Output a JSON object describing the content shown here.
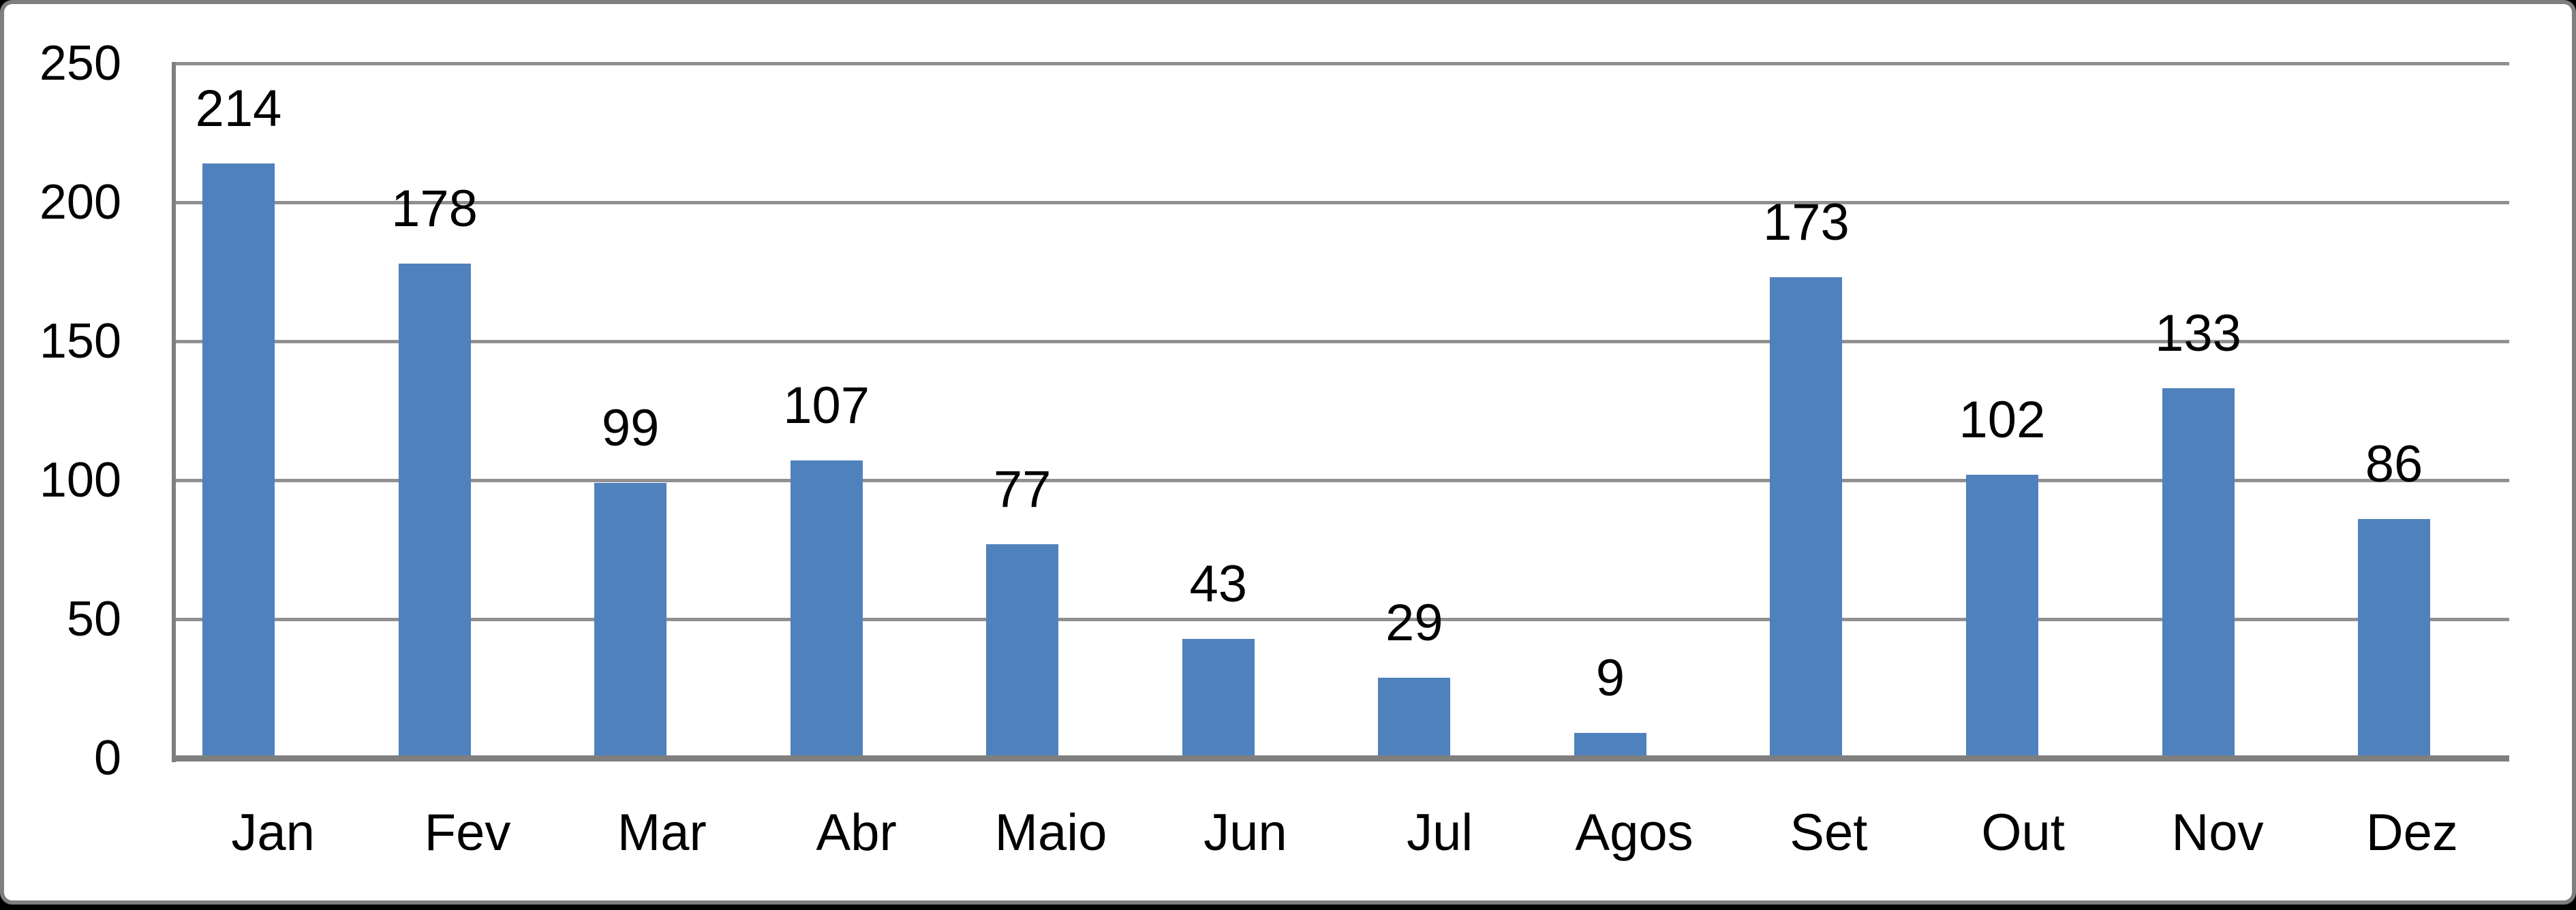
{
  "chart_data": {
    "type": "bar",
    "title": "",
    "xlabel": "",
    "ylabel": "",
    "categories": [
      "Jan",
      "Fev",
      "Mar",
      "Abr",
      "Maio",
      "Jun",
      "Jul",
      "Agos",
      "Set",
      "Out",
      "Nov",
      "Dez"
    ],
    "values": [
      214,
      178,
      99,
      107,
      77,
      43,
      29,
      9,
      173,
      102,
      133,
      86
    ],
    "data_labels": [
      214,
      178,
      99,
      107,
      77,
      43,
      29,
      9,
      173,
      102,
      133,
      86
    ],
    "y_ticks": [
      0,
      50,
      100,
      150,
      200,
      250
    ],
    "ylim": [
      0,
      250
    ],
    "grid": true,
    "legend": false,
    "data_labels_shown": true,
    "colors": {
      "bar": "#4F81BD",
      "gridline": "#909090",
      "axis": "#7F7F7F",
      "plot_border": "#7F7F7F",
      "frame_border": "#7F7F7F",
      "frame_outer": "#000000",
      "text": "#000000",
      "background": "#FFFFFF"
    }
  }
}
